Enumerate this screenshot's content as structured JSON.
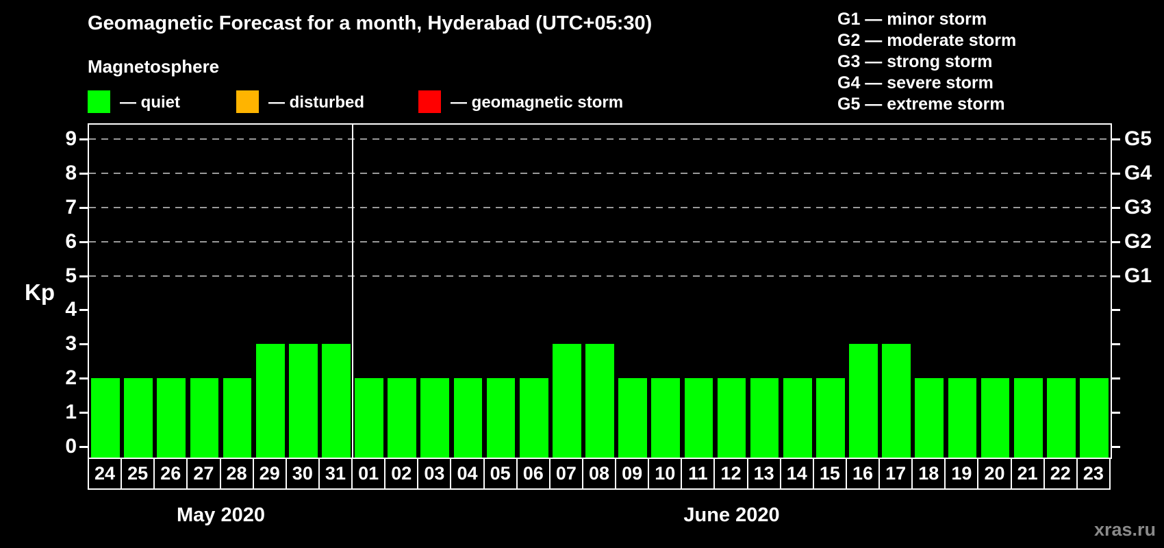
{
  "title": "Geomagnetic Forecast for a month, Hyderabad (UTC+05:30)",
  "subtitle": "Magnetosphere",
  "legend": {
    "separator": "—",
    "items": [
      {
        "label": "quiet",
        "color": "#00ff00"
      },
      {
        "label": "disturbed",
        "color": "#ffb400"
      },
      {
        "label": "geomagnetic storm",
        "color": "#ff0000"
      }
    ]
  },
  "storm_scale_legend": {
    "separator": "—",
    "items": [
      {
        "code": "G1",
        "label": "minor storm"
      },
      {
        "code": "G2",
        "label": "moderate storm"
      },
      {
        "code": "G3",
        "label": "strong storm"
      },
      {
        "code": "G4",
        "label": "severe storm"
      },
      {
        "code": "G5",
        "label": "extreme storm"
      }
    ]
  },
  "watermark": "xras.ru",
  "colors": {
    "background": "#000000",
    "text": "#ffffff",
    "quiet": "#00ff00",
    "disturbed": "#ffb400",
    "storm": "#ff0000",
    "gridline": "#9a9a9a",
    "watermark": "#8a8a8a"
  },
  "chart_data": {
    "type": "bar",
    "title": "Geomagnetic Forecast for a month, Hyderabad (UTC+05:30)",
    "ylabel": "Kp",
    "ylim": [
      0,
      9
    ],
    "y_ticks": [
      0,
      1,
      2,
      3,
      4,
      5,
      6,
      7,
      8,
      9
    ],
    "gridlines_at_kp": [
      5,
      6,
      7,
      8,
      9
    ],
    "grid_style": "dashed",
    "right_axis_labels": [
      {
        "kp": 5,
        "label": "G1"
      },
      {
        "kp": 6,
        "label": "G2"
      },
      {
        "kp": 7,
        "label": "G3"
      },
      {
        "kp": 8,
        "label": "G4"
      },
      {
        "kp": 9,
        "label": "G5"
      }
    ],
    "bar_color": "#00ff00",
    "bar_status": "quiet",
    "legend_position": "top-left and top-right",
    "months": [
      {
        "label": "May 2020",
        "days": [
          "24",
          "25",
          "26",
          "27",
          "28",
          "29",
          "30",
          "31"
        ],
        "values": [
          2,
          2,
          2,
          2,
          2,
          3,
          3,
          3
        ]
      },
      {
        "label": "June 2020",
        "days": [
          "01",
          "02",
          "03",
          "04",
          "05",
          "06",
          "07",
          "08",
          "09",
          "10",
          "11",
          "12",
          "13",
          "14",
          "15",
          "16",
          "17",
          "18",
          "19",
          "20",
          "21",
          "22",
          "23"
        ],
        "values": [
          2,
          2,
          2,
          2,
          2,
          2,
          3,
          3,
          2,
          2,
          2,
          2,
          2,
          2,
          2,
          3,
          3,
          2,
          2,
          2,
          2,
          2,
          2
        ]
      }
    ],
    "categories": [
      "May 24",
      "May 25",
      "May 26",
      "May 27",
      "May 28",
      "May 29",
      "May 30",
      "May 31",
      "Jun 01",
      "Jun 02",
      "Jun 03",
      "Jun 04",
      "Jun 05",
      "Jun 06",
      "Jun 07",
      "Jun 08",
      "Jun 09",
      "Jun 10",
      "Jun 11",
      "Jun 12",
      "Jun 13",
      "Jun 14",
      "Jun 15",
      "Jun 16",
      "Jun 17",
      "Jun 18",
      "Jun 19",
      "Jun 20",
      "Jun 21",
      "Jun 22",
      "Jun 23"
    ],
    "values": [
      2,
      2,
      2,
      2,
      2,
      3,
      3,
      3,
      2,
      2,
      2,
      2,
      2,
      2,
      3,
      3,
      2,
      2,
      2,
      2,
      2,
      2,
      2,
      3,
      3,
      2,
      2,
      2,
      2,
      2,
      2
    ]
  }
}
